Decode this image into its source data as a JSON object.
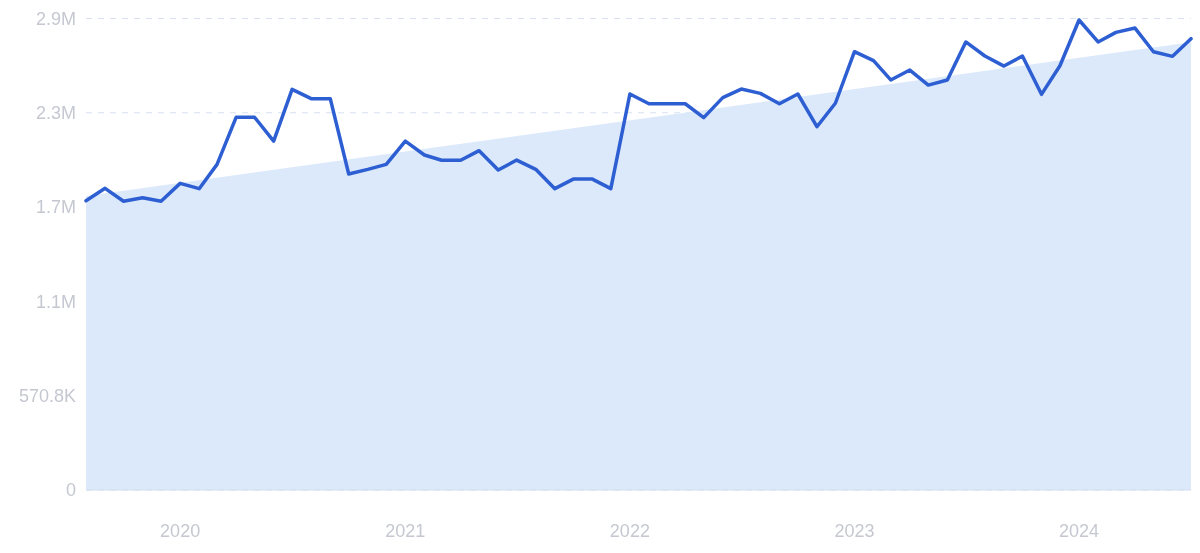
{
  "chart_data": {
    "type": "line",
    "xlim": [
      "2019-08",
      "2024-07"
    ],
    "ylim": [
      0,
      2854000
    ],
    "xticks": [
      "2020",
      "2021",
      "2022",
      "2023",
      "2024"
    ],
    "yticks": [
      0,
      {
        "value": 570800,
        "label": "570.8K"
      },
      {
        "value": 1141600,
        "label": "1.1M"
      },
      {
        "value": 1712400,
        "label": "1.7M"
      },
      {
        "value": 2283200,
        "label": "2.3M"
      },
      {
        "value": 2854000,
        "label": "2.9M"
      }
    ],
    "grid": "y",
    "series": [
      {
        "type": "area",
        "color": "#dce9fb",
        "x": [
          "2019-08",
          "2024-07"
        ],
        "values": [
          1780000,
          2710000
        ]
      },
      {
        "color": "#2d5fd3",
        "x": [
          "2019-08",
          "2019-09",
          "2019-10",
          "2019-11",
          "2019-12",
          "2020-01",
          "2020-02",
          "2020-03",
          "2020-04",
          "2020-05",
          "2020-06",
          "2020-07",
          "2020-08",
          "2020-09",
          "2020-10",
          "2020-11",
          "2020-12",
          "2021-01",
          "2021-02",
          "2021-03",
          "2021-04",
          "2021-05",
          "2021-06",
          "2021-07",
          "2021-08",
          "2021-09",
          "2021-10",
          "2021-11",
          "2021-12",
          "2022-01",
          "2022-02",
          "2022-03",
          "2022-04",
          "2022-05",
          "2022-06",
          "2022-07",
          "2022-08",
          "2022-09",
          "2022-10",
          "2022-11",
          "2022-12",
          "2023-01",
          "2023-02",
          "2023-03",
          "2023-04",
          "2023-05",
          "2023-06",
          "2023-07",
          "2023-08",
          "2023-09",
          "2023-10",
          "2023-11",
          "2023-12",
          "2024-01",
          "2024-02",
          "2024-03",
          "2024-04",
          "2024-05",
          "2024-06",
          "2024-07"
        ],
        "values": [
          1751000,
          1826000,
          1748000,
          1769000,
          1748000,
          1856000,
          1824000,
          1971000,
          2256000,
          2256000,
          2112000,
          2425000,
          2369000,
          2369000,
          1913000,
          1941000,
          1971000,
          2112000,
          2028000,
          1996000,
          1996000,
          2054000,
          1937000,
          1997000,
          1941000,
          1824000,
          1882000,
          1882000,
          1824000,
          2397000,
          2338000,
          2338000,
          2338000,
          2254000,
          2375000,
          2427000,
          2401000,
          2338000,
          2397000,
          2199000,
          2341000,
          2653000,
          2599000,
          2482000,
          2542000,
          2451000,
          2482000,
          2712000,
          2627000,
          2566000,
          2627000,
          2395000,
          2568000,
          2845000,
          2712000,
          2770000,
          2796000,
          2653000,
          2625000,
          2732000
        ]
      }
    ]
  }
}
